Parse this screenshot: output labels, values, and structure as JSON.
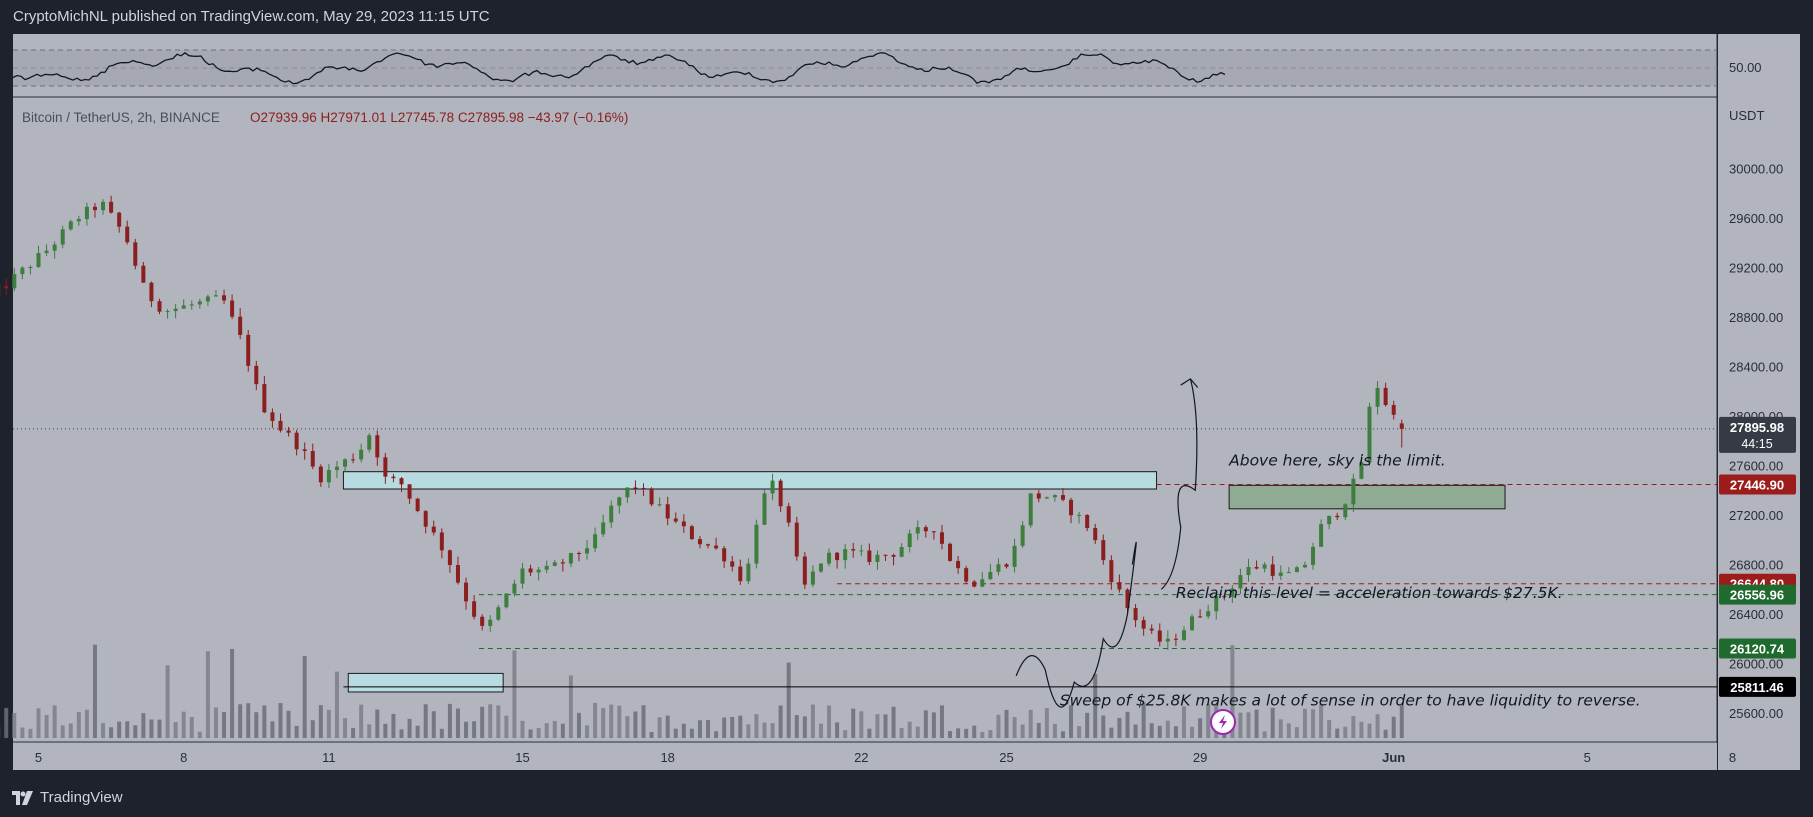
{
  "header": {
    "publish_line": "CryptoMichNL published on TradingView.com, May 29, 2023 11:15 UTC"
  },
  "footer": {
    "brand": "TradingView"
  },
  "colors": {
    "background": "#b2b5be",
    "frame": "#1e222d",
    "up": "#26a69a",
    "down": "#ef5350",
    "candle_body_up": "#3d7d3d",
    "candle_body_down": "#8b1e1e",
    "resistance_box": "#b7dbe1",
    "green_zone": "#8fab94",
    "price_label": "#363a45",
    "label_red": "#9c1c1c",
    "label_green": "#1f6b2f",
    "label_black": "#000000"
  },
  "chart_data": {
    "type": "candlestick",
    "title": "",
    "symbol_line": {
      "symbol": "Bitcoin / TetherUS, 2h, BINANCE",
      "ohlc": "O27939.96  H27971.01  L27745.78  C27895.98  −43.97 (−0.16%)"
    },
    "y_axis": {
      "unit_label": "USDT",
      "ticks": [
        "30000.00",
        "29600.00",
        "29200.00",
        "28800.00",
        "28400.00",
        "28000.00",
        "27600.00",
        "27200.00",
        "26800.00",
        "26400.00",
        "26000.00",
        "25600.00"
      ],
      "range": [
        25400,
        30600
      ]
    },
    "x_axis": {
      "ticks": [
        "5",
        "8",
        "11",
        "15",
        "18",
        "22",
        "25",
        "29",
        "Jun",
        "5",
        "8"
      ],
      "range_days": "May 4 – Jun 8, 2023"
    },
    "rsi": {
      "level_label": "50.00"
    },
    "price_labels": [
      {
        "value": "27895.98",
        "sub": "44:15",
        "style": "current"
      },
      {
        "value": "27446.90",
        "style": "red"
      },
      {
        "value": "26644.80",
        "style": "red"
      },
      {
        "value": "26556.96",
        "style": "green"
      },
      {
        "value": "26120.74",
        "style": "green"
      },
      {
        "value": "25811.46",
        "style": "black"
      }
    ],
    "horizontal_levels": [
      {
        "price": 27446.9,
        "color": "red",
        "dash": true
      },
      {
        "price": 26644.8,
        "color": "red",
        "dash": true
      },
      {
        "price": 26556.96,
        "color": "green",
        "dash": true
      },
      {
        "price": 26120.74,
        "color": "green",
        "dash": true
      },
      {
        "price": 25811.46,
        "color": "black",
        "dash": false
      }
    ],
    "annotations": [
      "Above here, sky is the limit.",
      "Reclaim this level = acceleration towards $27.5K.",
      "Sweep of $25.8K makes a lot of sense in order to have liquidity to reverse."
    ],
    "price_path": [
      {
        "d": 4.0,
        "p": 28950
      },
      {
        "d": 4.6,
        "p": 29150
      },
      {
        "d": 5.2,
        "p": 29350
      },
      {
        "d": 5.8,
        "p": 29600
      },
      {
        "d": 6.3,
        "p": 29720
      },
      {
        "d": 6.8,
        "p": 29450
      },
      {
        "d": 7.2,
        "p": 29000
      },
      {
        "d": 7.6,
        "p": 28850
      },
      {
        "d": 8.2,
        "p": 28900
      },
      {
        "d": 8.8,
        "p": 28950
      },
      {
        "d": 9.2,
        "p": 28600
      },
      {
        "d": 9.6,
        "p": 28100
      },
      {
        "d": 10.0,
        "p": 27900
      },
      {
        "d": 10.4,
        "p": 27750
      },
      {
        "d": 10.8,
        "p": 27500
      },
      {
        "d": 11.2,
        "p": 27600
      },
      {
        "d": 11.6,
        "p": 27700
      },
      {
        "d": 11.9,
        "p": 27900
      },
      {
        "d": 12.1,
        "p": 27500
      },
      {
        "d": 12.5,
        "p": 27450
      },
      {
        "d": 12.9,
        "p": 27200
      },
      {
        "d": 13.4,
        "p": 26900
      },
      {
        "d": 13.8,
        "p": 26550
      },
      {
        "d": 14.2,
        "p": 26250
      },
      {
        "d": 14.6,
        "p": 26500
      },
      {
        "d": 15.0,
        "p": 26750
      },
      {
        "d": 15.5,
        "p": 26750
      },
      {
        "d": 16.0,
        "p": 26850
      },
      {
        "d": 16.5,
        "p": 27000
      },
      {
        "d": 16.9,
        "p": 27300
      },
      {
        "d": 17.3,
        "p": 27450
      },
      {
        "d": 17.7,
        "p": 27300
      },
      {
        "d": 18.1,
        "p": 27150
      },
      {
        "d": 18.6,
        "p": 27000
      },
      {
        "d": 19.1,
        "p": 26900
      },
      {
        "d": 19.6,
        "p": 26650
      },
      {
        "d": 19.9,
        "p": 27300
      },
      {
        "d": 20.2,
        "p": 27450
      },
      {
        "d": 20.5,
        "p": 27100
      },
      {
        "d": 20.8,
        "p": 26600
      },
      {
        "d": 21.2,
        "p": 26850
      },
      {
        "d": 21.7,
        "p": 26900
      },
      {
        "d": 22.2,
        "p": 26850
      },
      {
        "d": 22.7,
        "p": 26900
      },
      {
        "d": 23.1,
        "p": 27050
      },
      {
        "d": 23.5,
        "p": 27100
      },
      {
        "d": 23.9,
        "p": 26800
      },
      {
        "d": 24.3,
        "p": 26650
      },
      {
        "d": 24.7,
        "p": 26750
      },
      {
        "d": 25.1,
        "p": 26850
      },
      {
        "d": 25.5,
        "p": 27350
      },
      {
        "d": 25.9,
        "p": 27350
      },
      {
        "d": 26.3,
        "p": 27250
      },
      {
        "d": 26.7,
        "p": 27100
      },
      {
        "d": 27.1,
        "p": 26750
      },
      {
        "d": 27.5,
        "p": 26450
      },
      {
        "d": 27.9,
        "p": 26250
      },
      {
        "d": 28.3,
        "p": 26150
      },
      {
        "d": 28.7,
        "p": 26300
      },
      {
        "d": 29.1,
        "p": 26450
      },
      {
        "d": 29.5,
        "p": 26550
      },
      {
        "d": 29.9,
        "p": 26750
      },
      {
        "d": 30.3,
        "p": 26800
      },
      {
        "d": 30.7,
        "p": 26700
      },
      {
        "d": 31.1,
        "p": 26750
      },
      {
        "d": 31.5,
        "p": 27100
      },
      {
        "d": 31.9,
        "p": 27250
      },
      {
        "d": 32.3,
        "p": 27550
      },
      {
        "d": 32.6,
        "p": 28300
      },
      {
        "d": 32.9,
        "p": 28050
      },
      {
        "d": 33.2,
        "p": 27895
      }
    ]
  }
}
